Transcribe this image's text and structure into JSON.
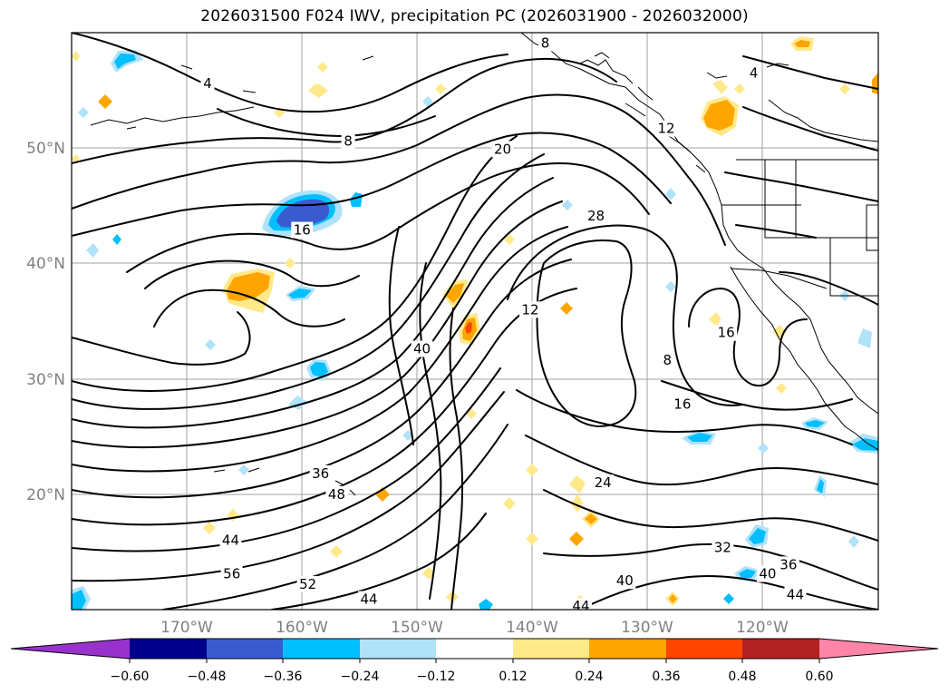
{
  "title": "2026031500 F024 IWV, precipitation PC (2026031900 - 2026032000)",
  "map": {
    "projection": "plate-carree",
    "lon_range": [
      -180,
      -110
    ],
    "lat_range": [
      10,
      60
    ],
    "gridlines": true,
    "lat_labels": [
      "50°N",
      "40°N",
      "30°N",
      "20°N"
    ],
    "lon_labels": [
      "170°W",
      "160°W",
      "150°W",
      "140°W",
      "130°W",
      "120°W"
    ],
    "contour_variable": "IWV",
    "contour_labels": [
      {
        "text": "8",
        "lon": -128.3,
        "lat": 31.6
      },
      {
        "text": "4",
        "lon": -168.2,
        "lat": 55.6
      },
      {
        "text": "4",
        "lon": -120.8,
        "lat": 56.5
      },
      {
        "text": "8",
        "lon": -156.0,
        "lat": 50.6
      },
      {
        "text": "8",
        "lon": -138.9,
        "lat": 59.1
      },
      {
        "text": "20",
        "lon": -142.6,
        "lat": 49.9
      },
      {
        "text": "12",
        "lon": -128.4,
        "lat": 51.7
      },
      {
        "text": "16",
        "lon": -160.0,
        "lat": 42.9
      },
      {
        "text": "28",
        "lon": -134.5,
        "lat": 44.1
      },
      {
        "text": "12",
        "lon": -140.2,
        "lat": 36.0
      },
      {
        "text": "40",
        "lon": -149.6,
        "lat": 32.6
      },
      {
        "text": "16",
        "lon": -123.2,
        "lat": 34.0
      },
      {
        "text": "16",
        "lon": -127.0,
        "lat": 27.8
      },
      {
        "text": "36",
        "lon": -158.4,
        "lat": 21.8
      },
      {
        "text": "48",
        "lon": -157.0,
        "lat": 20.0
      },
      {
        "text": "24",
        "lon": -133.9,
        "lat": 21.0
      },
      {
        "text": "44",
        "lon": -166.2,
        "lat": 16.0
      },
      {
        "text": "56",
        "lon": -166.1,
        "lat": 13.1
      },
      {
        "text": "52",
        "lon": -159.5,
        "lat": 12.2
      },
      {
        "text": "44",
        "lon": -154.2,
        "lat": 10.9
      },
      {
        "text": "32",
        "lon": -123.5,
        "lat": 15.4
      },
      {
        "text": "40",
        "lon": -132.0,
        "lat": 12.5
      },
      {
        "text": "36",
        "lon": -117.8,
        "lat": 13.9
      },
      {
        "text": "40",
        "lon": -119.6,
        "lat": 13.1
      },
      {
        "text": "44",
        "lon": -117.2,
        "lat": 11.3
      },
      {
        "text": "44",
        "lon": -135.8,
        "lat": 10.3
      }
    ],
    "colors": {
      "neg_extreme": "#9932cc",
      "neg_060": "#00008b",
      "neg_048": "#3a5bd0",
      "neg_036": "#00bfff",
      "neg_024": "#b0e2fa",
      "pos_012": "#ffe98a",
      "pos_024": "#ffa500",
      "pos_036": "#ff4500",
      "pos_048": "#b22222",
      "pos_extreme": "#ff85a8"
    }
  },
  "colorbar": {
    "variable": "precipitation PC",
    "boundaries": [
      -0.72,
      -0.6,
      -0.48,
      -0.36,
      -0.24,
      -0.12,
      0.12,
      0.24,
      0.36,
      0.48,
      0.6,
      0.72
    ],
    "colors": [
      "#00008b",
      "#3a5bd0",
      "#00bfff",
      "#00bfff",
      "#b0e2fa",
      "#ffffff",
      "#ffe98a",
      "#ffa500",
      "#ff4500",
      "#b22222",
      "#ff85a8"
    ],
    "under_color": "#9932cc",
    "over_color": "#ff85a8",
    "tick_labels": [
      "−0.60",
      "−0.48",
      "−0.36",
      "−0.24",
      "−0.12",
      "0.12",
      "0.24",
      "0.36",
      "0.48",
      "0.60"
    ]
  }
}
